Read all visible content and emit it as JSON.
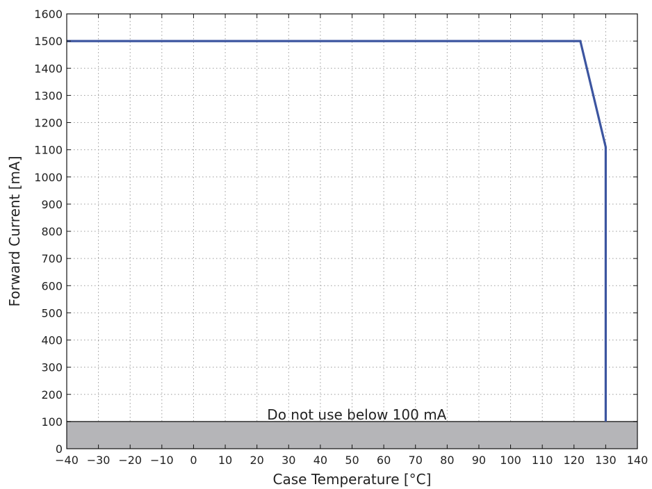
{
  "chart_data": {
    "type": "line",
    "title": "",
    "xlabel": "Case Temperature [°C]",
    "ylabel": "Forward Current [mA]",
    "xlim": [
      -40,
      140
    ],
    "ylim": [
      0,
      1600
    ],
    "xticks": [
      -40,
      -30,
      -20,
      -10,
      0,
      10,
      20,
      30,
      40,
      50,
      60,
      70,
      80,
      90,
      100,
      110,
      120,
      130,
      140
    ],
    "yticks": [
      0,
      100,
      200,
      300,
      400,
      500,
      600,
      700,
      800,
      900,
      1000,
      1100,
      1200,
      1300,
      1400,
      1500,
      1600
    ],
    "xtick_labels": [
      "−40",
      "−30",
      "−20",
      "−10",
      "0",
      "10",
      "20",
      "30",
      "40",
      "50",
      "60",
      "70",
      "80",
      "90",
      "100",
      "110",
      "120",
      "130",
      "140"
    ],
    "ytick_labels": [
      "0",
      "100",
      "200",
      "300",
      "400",
      "500",
      "600",
      "700",
      "800",
      "900",
      "1000",
      "1100",
      "1200",
      "1300",
      "1400",
      "1500",
      "1600"
    ],
    "grid": true,
    "series": [
      {
        "color": "#3c55a0",
        "points": [
          {
            "x": -40,
            "y": 1500
          },
          {
            "x": 122,
            "y": 1500
          },
          {
            "x": 130,
            "y": 1110
          },
          {
            "x": 130,
            "y": 100
          }
        ]
      }
    ],
    "shaded_region": {
      "y_from": 0,
      "y_to": 100,
      "color": "#b5b5b8",
      "border_color": "#333333",
      "label": "Do not use below 100 mA"
    }
  }
}
